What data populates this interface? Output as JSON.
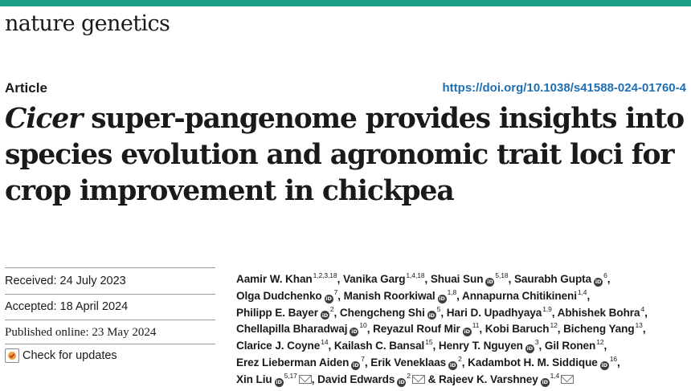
{
  "header": {
    "journal": "nature genetics",
    "article_type": "Article",
    "doi": "https://doi.org/10.1038/s41588-024-01760-4"
  },
  "title": {
    "italic_part": "Cicer",
    "rest": " super-pangenome provides insights into species evolution and agronomic trait loci for crop improvement in chickpea"
  },
  "dates": {
    "received": "Received: 24 July 2023",
    "accepted": "Accepted: 18 April 2024",
    "published": "Published online: 23 May 2024"
  },
  "check_updates": "Check for updates",
  "authors": [
    {
      "name": "Aamir W. Khan",
      "aff": "1,2,3,18",
      "orcid": false,
      "mail": false
    },
    {
      "name": "Vanika Garg",
      "aff": "1,4,18",
      "orcid": false,
      "mail": false
    },
    {
      "name": "Shuai Sun",
      "aff": "5,18",
      "orcid": true,
      "mail": false
    },
    {
      "name": "Saurabh Gupta",
      "aff": "6",
      "orcid": true,
      "mail": false
    },
    {
      "name": "Olga Dudchenko",
      "aff": "7",
      "orcid": true,
      "mail": false
    },
    {
      "name": "Manish Roorkiwal",
      "aff": "1,8",
      "orcid": true,
      "mail": false
    },
    {
      "name": "Annapurna Chitikineni",
      "aff": "1,4",
      "orcid": false,
      "mail": false
    },
    {
      "name": "Philipp E. Bayer",
      "aff": "2",
      "orcid": true,
      "mail": false
    },
    {
      "name": "Chengcheng Shi",
      "aff": "5",
      "orcid": true,
      "mail": false
    },
    {
      "name": "Hari D. Upadhyaya",
      "aff": "1,9",
      "orcid": false,
      "mail": false
    },
    {
      "name": "Abhishek Bohra",
      "aff": "4",
      "orcid": false,
      "mail": false
    },
    {
      "name": "Chellapilla Bharadwaj",
      "aff": "10",
      "orcid": true,
      "mail": false
    },
    {
      "name": "Reyazul Rouf Mir",
      "aff": "11",
      "orcid": true,
      "mail": false
    },
    {
      "name": "Kobi Baruch",
      "aff": "12",
      "orcid": false,
      "mail": false
    },
    {
      "name": "Bicheng Yang",
      "aff": "13",
      "orcid": false,
      "mail": false
    },
    {
      "name": "Clarice J. Coyne",
      "aff": "14",
      "orcid": false,
      "mail": false
    },
    {
      "name": "Kailash C. Bansal",
      "aff": "15",
      "orcid": false,
      "mail": false
    },
    {
      "name": "Henry T. Nguyen",
      "aff": "3",
      "orcid": true,
      "mail": false
    },
    {
      "name": "Gil Ronen",
      "aff": "12",
      "orcid": false,
      "mail": false
    },
    {
      "name": "Erez Lieberman Aiden",
      "aff": "7",
      "orcid": true,
      "mail": false
    },
    {
      "name": "Erik Veneklaas",
      "aff": "2",
      "orcid": true,
      "mail": false
    },
    {
      "name": "Kadambot H. M. Siddique",
      "aff": "16",
      "orcid": true,
      "mail": false
    },
    {
      "name": "Xin Liu",
      "aff": "5,17",
      "orcid": true,
      "mail": true
    },
    {
      "name": "David Edwards",
      "aff": "2",
      "orcid": true,
      "mail": true
    },
    {
      "name": "Rajeev K. Varshney",
      "aff": "1,4",
      "orcid": true,
      "mail": true
    }
  ],
  "author_separators": {
    "comma": ",",
    "final": "&"
  },
  "colors": {
    "top_bar": "#1b9e83",
    "doi_link": "#1f6fb2"
  },
  "icons": {
    "orcid": "orcid-icon",
    "mail": "mail-icon",
    "updates": "check-updates-icon"
  }
}
